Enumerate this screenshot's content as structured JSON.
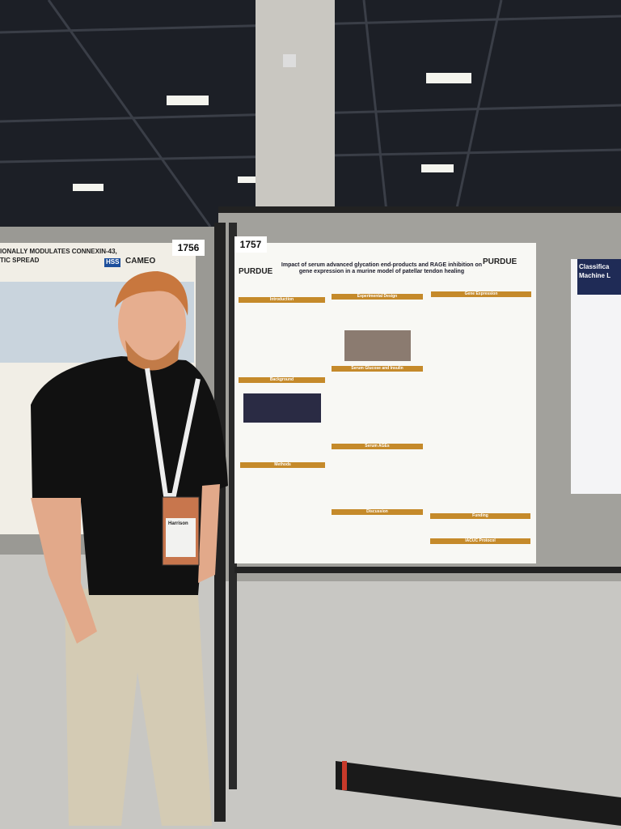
{
  "boards": [
    {
      "number": "1756"
    },
    {
      "number": "1757"
    }
  ],
  "poster": {
    "logo": "PURDUE",
    "logo_right": "PURDUE",
    "title": "Impact of serum advanced glycation end-products and RAGE inhibition on gene expression in a murine model of patellar tendon healing",
    "sections": [
      "Introduction",
      "Experimental Design",
      "Gene Expression",
      "Background",
      "Serum Glucose and Insulin",
      "Methods",
      "Serum AGEs",
      "Discussion",
      "Funding",
      "IACUC Protocol"
    ]
  },
  "left_poster": {
    "title_line1": "IONALLY MODULATES CONNEXIN-43,",
    "title_line2": "TIC SPREAD",
    "logo": "HSS",
    "logo_text": "CAMEO"
  },
  "right_poster": {
    "title_line1": "Classifica",
    "title_line2": "Machine L"
  },
  "badge": {
    "name": "Harrison"
  }
}
